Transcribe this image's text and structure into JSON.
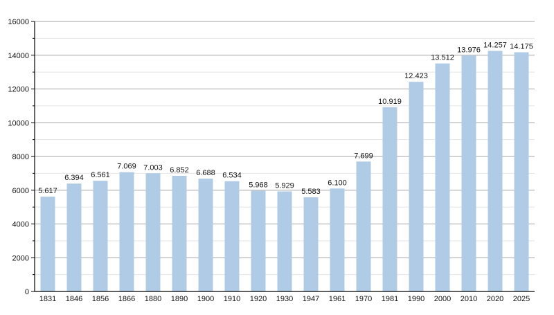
{
  "chart_data": {
    "type": "bar",
    "title": "",
    "xlabel": "",
    "ylabel": "",
    "categories": [
      "1831",
      "1846",
      "1856",
      "1866",
      "1880",
      "1890",
      "1900",
      "1910",
      "1920",
      "1930",
      "1947",
      "1961",
      "1970",
      "1981",
      "1990",
      "2000",
      "2010",
      "2020",
      "2025"
    ],
    "values": [
      5617,
      6394,
      6561,
      7069,
      7003,
      6852,
      6688,
      6534,
      5968,
      5929,
      5583,
      6100,
      7699,
      10919,
      12423,
      13512,
      13976,
      14257,
      14175
    ],
    "data_labels": [
      "5.617",
      "6.394",
      "6.561",
      "7.069",
      "7.003",
      "6.852",
      "6.688",
      "6.534",
      "5.968",
      "5.929",
      "5.583",
      "6.100",
      "7.699",
      "10.919",
      "12.423",
      "13.512",
      "13.976",
      "14.257",
      "14.175"
    ],
    "ylim": [
      0,
      16000
    ],
    "yticks": [
      0,
      2000,
      4000,
      6000,
      8000,
      10000,
      12000,
      14000,
      16000
    ],
    "grid": true,
    "legend": "none",
    "bar_color": "#b0cbe5",
    "major_grid_color": "#a6a6a6",
    "minor_grid_color": "#e4e4e4"
  }
}
